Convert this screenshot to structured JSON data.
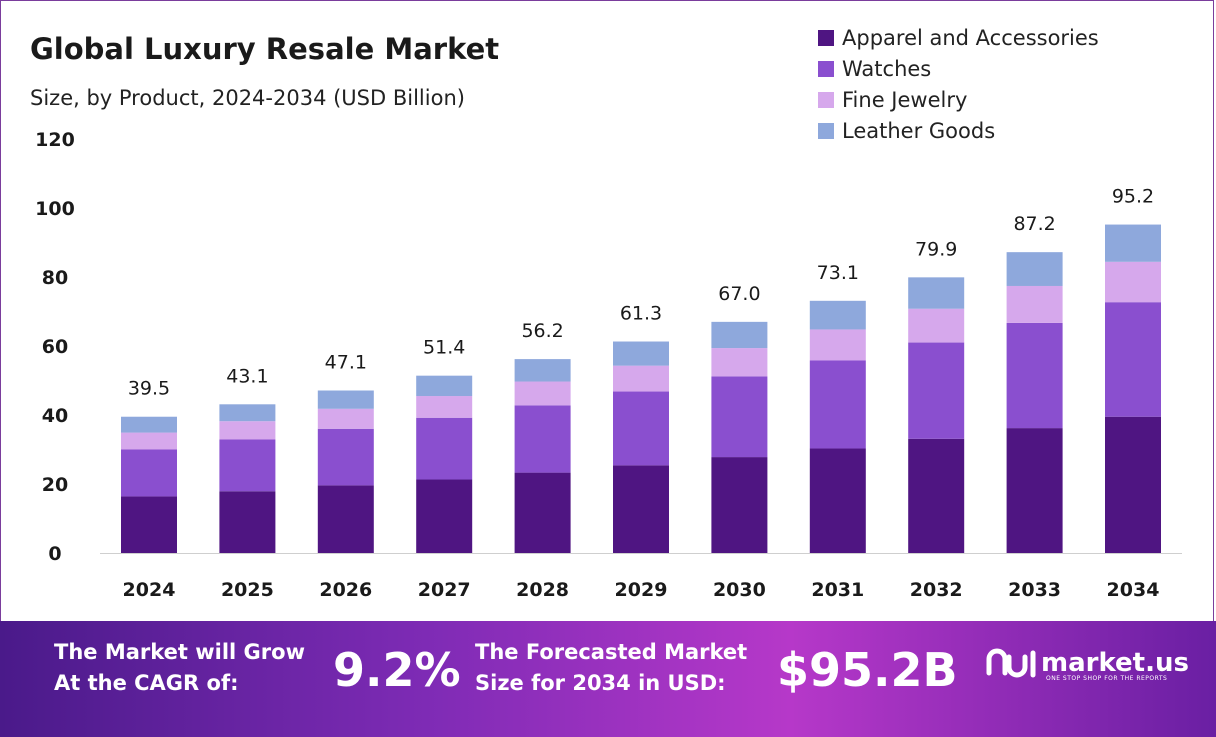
{
  "header": {
    "title": "Global Luxury Resale Market",
    "subtitle": "Size, by Product, 2024-2034 (USD Billion)"
  },
  "colors": {
    "apparel": "#4f1582",
    "watches": "#8a4fcf",
    "jewelry": "#d6a8ec",
    "leather": "#8ea8dc",
    "footer_start": "#4a1a8a",
    "footer_end": "#b638c9"
  },
  "chart_data": {
    "type": "bar",
    "stacked": true,
    "categories": [
      "2024",
      "2025",
      "2026",
      "2027",
      "2028",
      "2029",
      "2030",
      "2031",
      "2032",
      "2033",
      "2034"
    ],
    "series": [
      {
        "name": "Apparel and Accessories",
        "values": [
          16.4,
          17.9,
          19.6,
          21.3,
          23.3,
          25.4,
          27.8,
          30.3,
          33.1,
          36.2,
          39.5
        ]
      },
      {
        "name": "Watches",
        "values": [
          13.6,
          15.0,
          16.4,
          17.9,
          19.5,
          21.4,
          23.4,
          25.5,
          27.9,
          30.5,
          33.2
        ]
      },
      {
        "name": "Fine Jewelry",
        "values": [
          4.9,
          5.3,
          5.8,
          6.3,
          6.9,
          7.5,
          8.2,
          9.0,
          9.8,
          10.7,
          11.7
        ]
      },
      {
        "name": "Leather Goods",
        "values": [
          4.6,
          4.9,
          5.3,
          5.9,
          6.5,
          7.0,
          7.6,
          8.3,
          9.1,
          9.8,
          10.8
        ]
      }
    ],
    "totals": [
      "39.5",
      "43.1",
      "47.1",
      "51.4",
      "56.2",
      "61.3",
      "67.0",
      "73.1",
      "79.9",
      "87.2",
      "95.2"
    ],
    "yticks": [
      "0",
      "20",
      "40",
      "60",
      "80",
      "100",
      "120"
    ],
    "ylim": [
      0,
      120
    ],
    "legend_position": "top-right",
    "grid": false
  },
  "footer": {
    "cagr_label_line1": "The Market will Grow",
    "cagr_label_line2": "At the CAGR of:",
    "cagr_value": "9.2%",
    "forecast_label_line1": "The Forecasted Market",
    "forecast_label_line2": "Size for 2034 in USD:",
    "forecast_value": "$95.2B",
    "brand_name": "market.us",
    "brand_tagline": "ONE STOP SHOP FOR THE REPORTS"
  }
}
